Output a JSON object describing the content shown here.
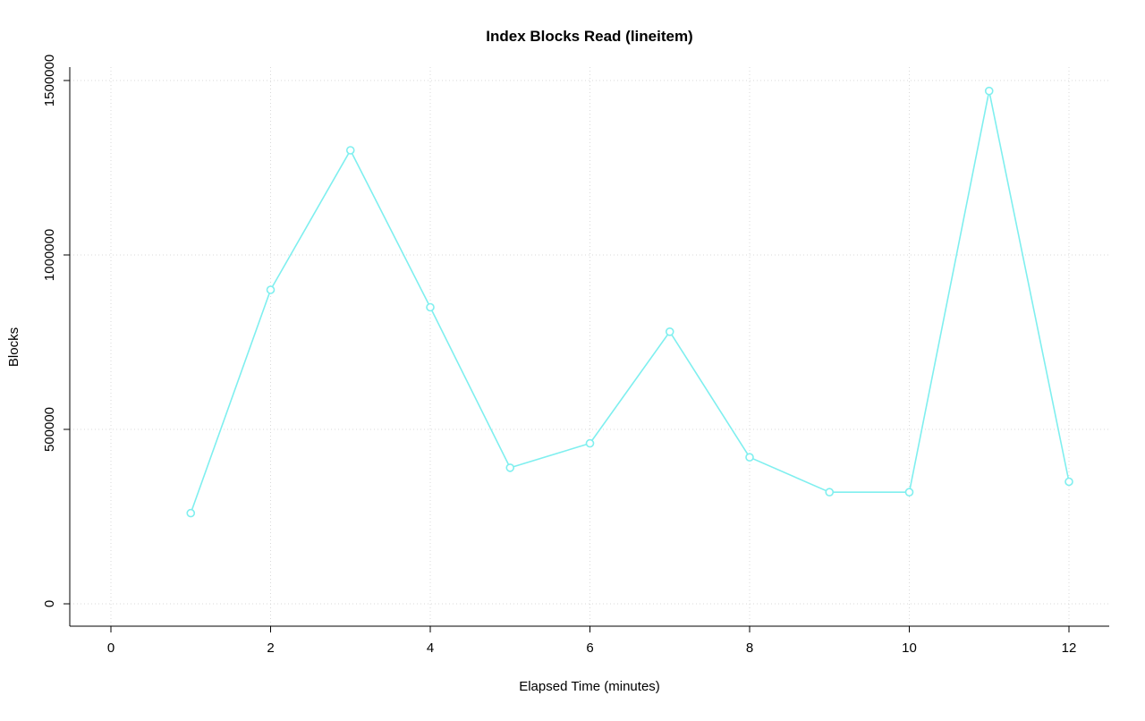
{
  "chart_data": {
    "type": "line",
    "title": "Index Blocks Read (lineitem)",
    "xlabel": "Elapsed Time (minutes)",
    "ylabel": "Blocks",
    "x": [
      1,
      2,
      3,
      4,
      5,
      6,
      7,
      8,
      9,
      10,
      11,
      12
    ],
    "values": [
      260000,
      900000,
      1300000,
      850000,
      390000,
      460000,
      780000,
      420000,
      320000,
      320000,
      1470000,
      350000
    ],
    "xlim": [
      0,
      12
    ],
    "ylim": [
      0,
      1500000
    ],
    "x_ticks": [
      0,
      2,
      4,
      6,
      8,
      10,
      12
    ],
    "y_ticks": [
      0,
      500000,
      1000000,
      1500000
    ],
    "grid": true,
    "legend": "none",
    "series_color": "#7FEFEF",
    "grid_color": "#D9D9D9",
    "axis_color": "#000000",
    "point_style": "open-circle"
  }
}
